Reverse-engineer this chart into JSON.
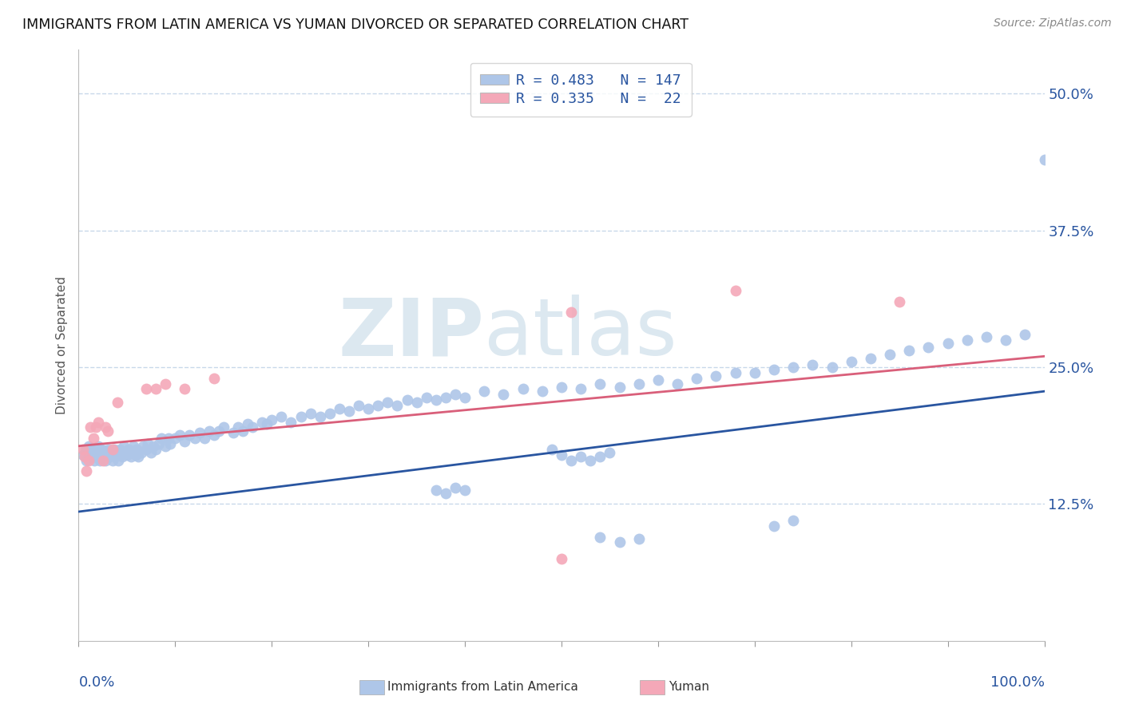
{
  "title": "IMMIGRANTS FROM LATIN AMERICA VS YUMAN DIVORCED OR SEPARATED CORRELATION CHART",
  "source": "Source: ZipAtlas.com",
  "ylabel": "Divorced or Separated",
  "yticks": [
    "12.5%",
    "25.0%",
    "37.5%",
    "50.0%"
  ],
  "ytick_vals": [
    0.125,
    0.25,
    0.375,
    0.5
  ],
  "legend_blue_label": "R = 0.483   N = 147",
  "legend_pink_label": "R = 0.335   N =  22",
  "blue_color": "#aec6e8",
  "pink_color": "#f4a8b8",
  "blue_line_color": "#2955a0",
  "pink_line_color": "#d95f7a",
  "legend_text_color": "#2955a0",
  "title_color": "#111111",
  "axis_color": "#2955a0",
  "grid_color": "#c8d8ea",
  "watermark_color": "#dce8f0",
  "blue_scatter_x": [
    0.005,
    0.007,
    0.008,
    0.009,
    0.01,
    0.01,
    0.011,
    0.012,
    0.013,
    0.013,
    0.014,
    0.015,
    0.015,
    0.016,
    0.017,
    0.018,
    0.018,
    0.019,
    0.02,
    0.02,
    0.021,
    0.022,
    0.023,
    0.024,
    0.025,
    0.026,
    0.027,
    0.028,
    0.03,
    0.031,
    0.032,
    0.033,
    0.035,
    0.036,
    0.037,
    0.038,
    0.04,
    0.041,
    0.042,
    0.043,
    0.045,
    0.046,
    0.047,
    0.05,
    0.052,
    0.054,
    0.055,
    0.057,
    0.059,
    0.06,
    0.062,
    0.065,
    0.067,
    0.07,
    0.072,
    0.075,
    0.077,
    0.08,
    0.083,
    0.086,
    0.09,
    0.093,
    0.095,
    0.1,
    0.105,
    0.11,
    0.115,
    0.12,
    0.125,
    0.13,
    0.135,
    0.14,
    0.145,
    0.15,
    0.16,
    0.165,
    0.17,
    0.175,
    0.18,
    0.19,
    0.195,
    0.2,
    0.21,
    0.22,
    0.23,
    0.24,
    0.25,
    0.26,
    0.27,
    0.28,
    0.29,
    0.3,
    0.31,
    0.32,
    0.33,
    0.34,
    0.35,
    0.36,
    0.37,
    0.38,
    0.39,
    0.4,
    0.42,
    0.44,
    0.46,
    0.48,
    0.5,
    0.52,
    0.54,
    0.56,
    0.58,
    0.6,
    0.62,
    0.64,
    0.66,
    0.68,
    0.7,
    0.72,
    0.74,
    0.76,
    0.78,
    0.8,
    0.82,
    0.84,
    0.86,
    0.88,
    0.9,
    0.92,
    0.94,
    0.96,
    0.98,
    1.0,
    0.51,
    0.52,
    0.53,
    0.54,
    0.55,
    0.49,
    0.5,
    0.37,
    0.38,
    0.39,
    0.4,
    0.54,
    0.56,
    0.58,
    0.72,
    0.74
  ],
  "blue_scatter_y": [
    0.17,
    0.175,
    0.165,
    0.175,
    0.172,
    0.178,
    0.168,
    0.175,
    0.17,
    0.176,
    0.174,
    0.168,
    0.172,
    0.165,
    0.174,
    0.17,
    0.175,
    0.168,
    0.172,
    0.178,
    0.17,
    0.165,
    0.172,
    0.175,
    0.168,
    0.17,
    0.174,
    0.165,
    0.17,
    0.175,
    0.168,
    0.172,
    0.165,
    0.17,
    0.175,
    0.168,
    0.172,
    0.165,
    0.17,
    0.175,
    0.168,
    0.172,
    0.178,
    0.17,
    0.175,
    0.168,
    0.172,
    0.178,
    0.17,
    0.175,
    0.168,
    0.172,
    0.178,
    0.175,
    0.18,
    0.172,
    0.178,
    0.175,
    0.18,
    0.185,
    0.178,
    0.185,
    0.18,
    0.185,
    0.188,
    0.182,
    0.188,
    0.185,
    0.19,
    0.185,
    0.192,
    0.188,
    0.192,
    0.195,
    0.19,
    0.195,
    0.192,
    0.198,
    0.195,
    0.2,
    0.198,
    0.202,
    0.205,
    0.2,
    0.205,
    0.208,
    0.205,
    0.208,
    0.212,
    0.21,
    0.215,
    0.212,
    0.215,
    0.218,
    0.215,
    0.22,
    0.218,
    0.222,
    0.22,
    0.222,
    0.225,
    0.222,
    0.228,
    0.225,
    0.23,
    0.228,
    0.232,
    0.23,
    0.235,
    0.232,
    0.235,
    0.238,
    0.235,
    0.24,
    0.242,
    0.245,
    0.245,
    0.248,
    0.25,
    0.252,
    0.25,
    0.255,
    0.258,
    0.262,
    0.265,
    0.268,
    0.272,
    0.275,
    0.278,
    0.275,
    0.28,
    0.44,
    0.165,
    0.168,
    0.165,
    0.168,
    0.172,
    0.175,
    0.17,
    0.138,
    0.135,
    0.14,
    0.138,
    0.095,
    0.09,
    0.093,
    0.105,
    0.11
  ],
  "pink_scatter_x": [
    0.005,
    0.006,
    0.008,
    0.01,
    0.012,
    0.015,
    0.018,
    0.02,
    0.025,
    0.028,
    0.03,
    0.035,
    0.04,
    0.07,
    0.08,
    0.09,
    0.11,
    0.14,
    0.51,
    0.68,
    0.85,
    0.5
  ],
  "pink_scatter_y": [
    0.175,
    0.168,
    0.155,
    0.165,
    0.195,
    0.185,
    0.195,
    0.2,
    0.165,
    0.195,
    0.192,
    0.175,
    0.218,
    0.23,
    0.23,
    0.235,
    0.23,
    0.24,
    0.3,
    0.32,
    0.31,
    0.075
  ],
  "blue_line_x": [
    0.0,
    1.0
  ],
  "blue_line_y": [
    0.118,
    0.228
  ],
  "pink_line_x": [
    0.0,
    1.0
  ],
  "pink_line_y": [
    0.178,
    0.26
  ],
  "xmin": 0.0,
  "xmax": 1.0,
  "ymin": 0.0,
  "ymax": 0.54
}
